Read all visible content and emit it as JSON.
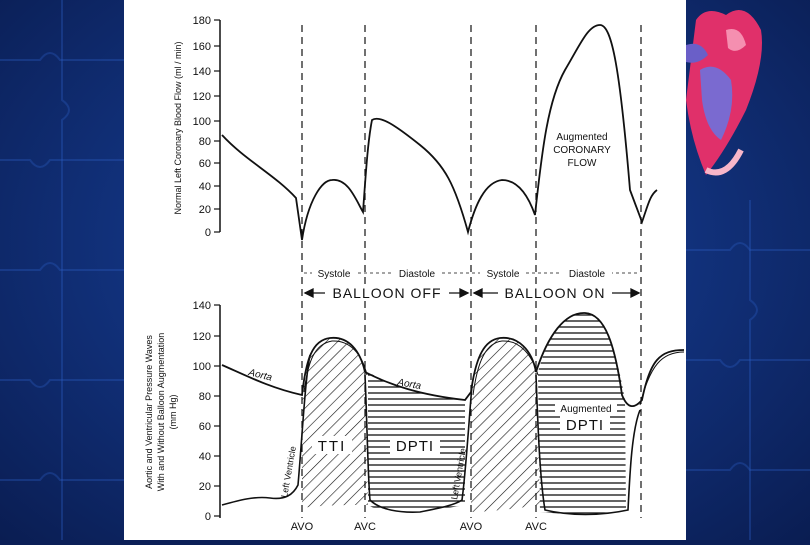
{
  "top_chart": {
    "ylabel": "Normal Left Coronary Blood Flow (ml / min)",
    "yticks": [
      "180",
      "160",
      "140",
      "120",
      "100",
      "80",
      "60",
      "40",
      "20",
      "0"
    ],
    "annotation": [
      "Augmented",
      "CORONARY",
      "FLOW"
    ]
  },
  "phases": {
    "systole_1": "Systole",
    "diastole_1": "Diastole",
    "systole_2": "Systole",
    "diastole_2": "Diastole",
    "balloon_off": "BALLOON OFF",
    "balloon_on": "BALLOON ON"
  },
  "bottom_chart": {
    "ylabel_lines": [
      "Aortic and Ventricular Pressure Waves",
      "With and Without Balloon Augmentation",
      "(mm Hg)"
    ],
    "yticks": [
      "140",
      "120",
      "100",
      "80",
      "60",
      "40",
      "20",
      "0"
    ],
    "aorta_label_1": "Aorta",
    "aorta_label_2": "Aorta",
    "left_ventricle_1": "Left Ventricle",
    "left_ventricle_2": "Left Ventricle",
    "tti_label": "TTI",
    "dpti_label": "DPTI",
    "augmented_label": "Augmented",
    "dpti_label_2": "DPTI",
    "xticks": [
      "AVO",
      "AVC",
      "AVO",
      "AVC"
    ]
  },
  "colors": {
    "background": "#0b1f57",
    "panel": "#ffffff",
    "ink": "#111111",
    "heart_red": "#e0306a",
    "heart_blue": "#6a5fc8"
  }
}
